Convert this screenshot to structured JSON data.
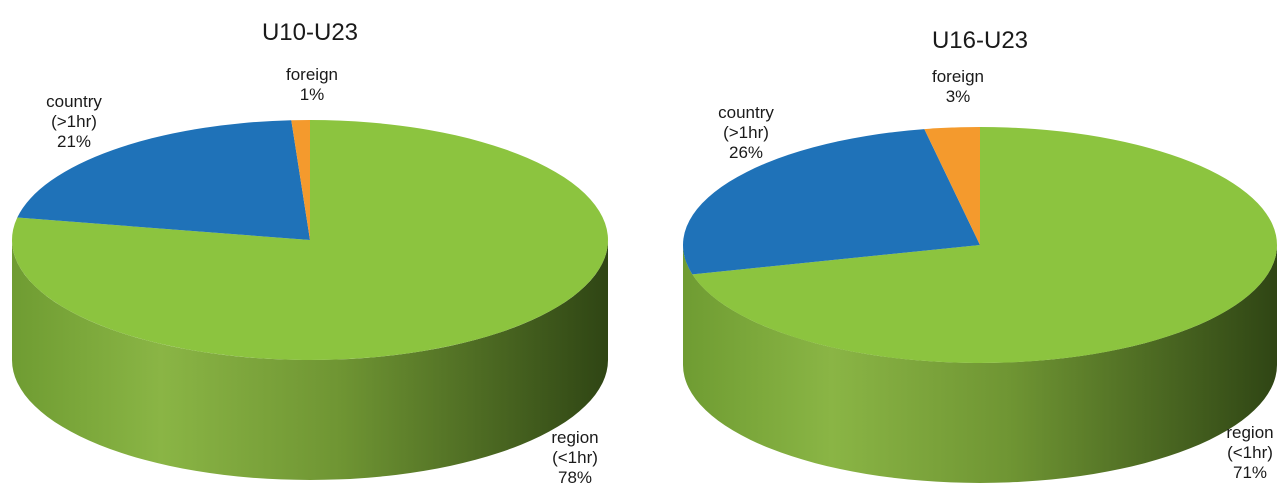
{
  "chart_data": [
    {
      "type": "pie",
      "title": "U10-U23",
      "slices": [
        {
          "name": "region",
          "name_line2": "(<1hr)",
          "value": 78,
          "label": "78%",
          "color": "#8cc43f"
        },
        {
          "name": "country",
          "name_line2": "(>1hr)",
          "value": 21,
          "label": "21%",
          "color": "#1f72b8"
        },
        {
          "name": "foreign",
          "name_line2": "",
          "value": 1,
          "label": "1%",
          "color": "#f49a2d"
        }
      ],
      "style": "3d",
      "legend": "none"
    },
    {
      "type": "pie",
      "title": "U16-U23",
      "slices": [
        {
          "name": "region",
          "name_line2": "(<1hr)",
          "value": 71,
          "label": "71%",
          "color": "#8cc43f"
        },
        {
          "name": "country",
          "name_line2": "(>1hr)",
          "value": 26,
          "label": "26%",
          "color": "#1f72b8"
        },
        {
          "name": "foreign",
          "name_line2": "",
          "value": 3,
          "label": "3%",
          "color": "#f49a2d"
        }
      ],
      "style": "3d",
      "legend": "none"
    }
  ]
}
